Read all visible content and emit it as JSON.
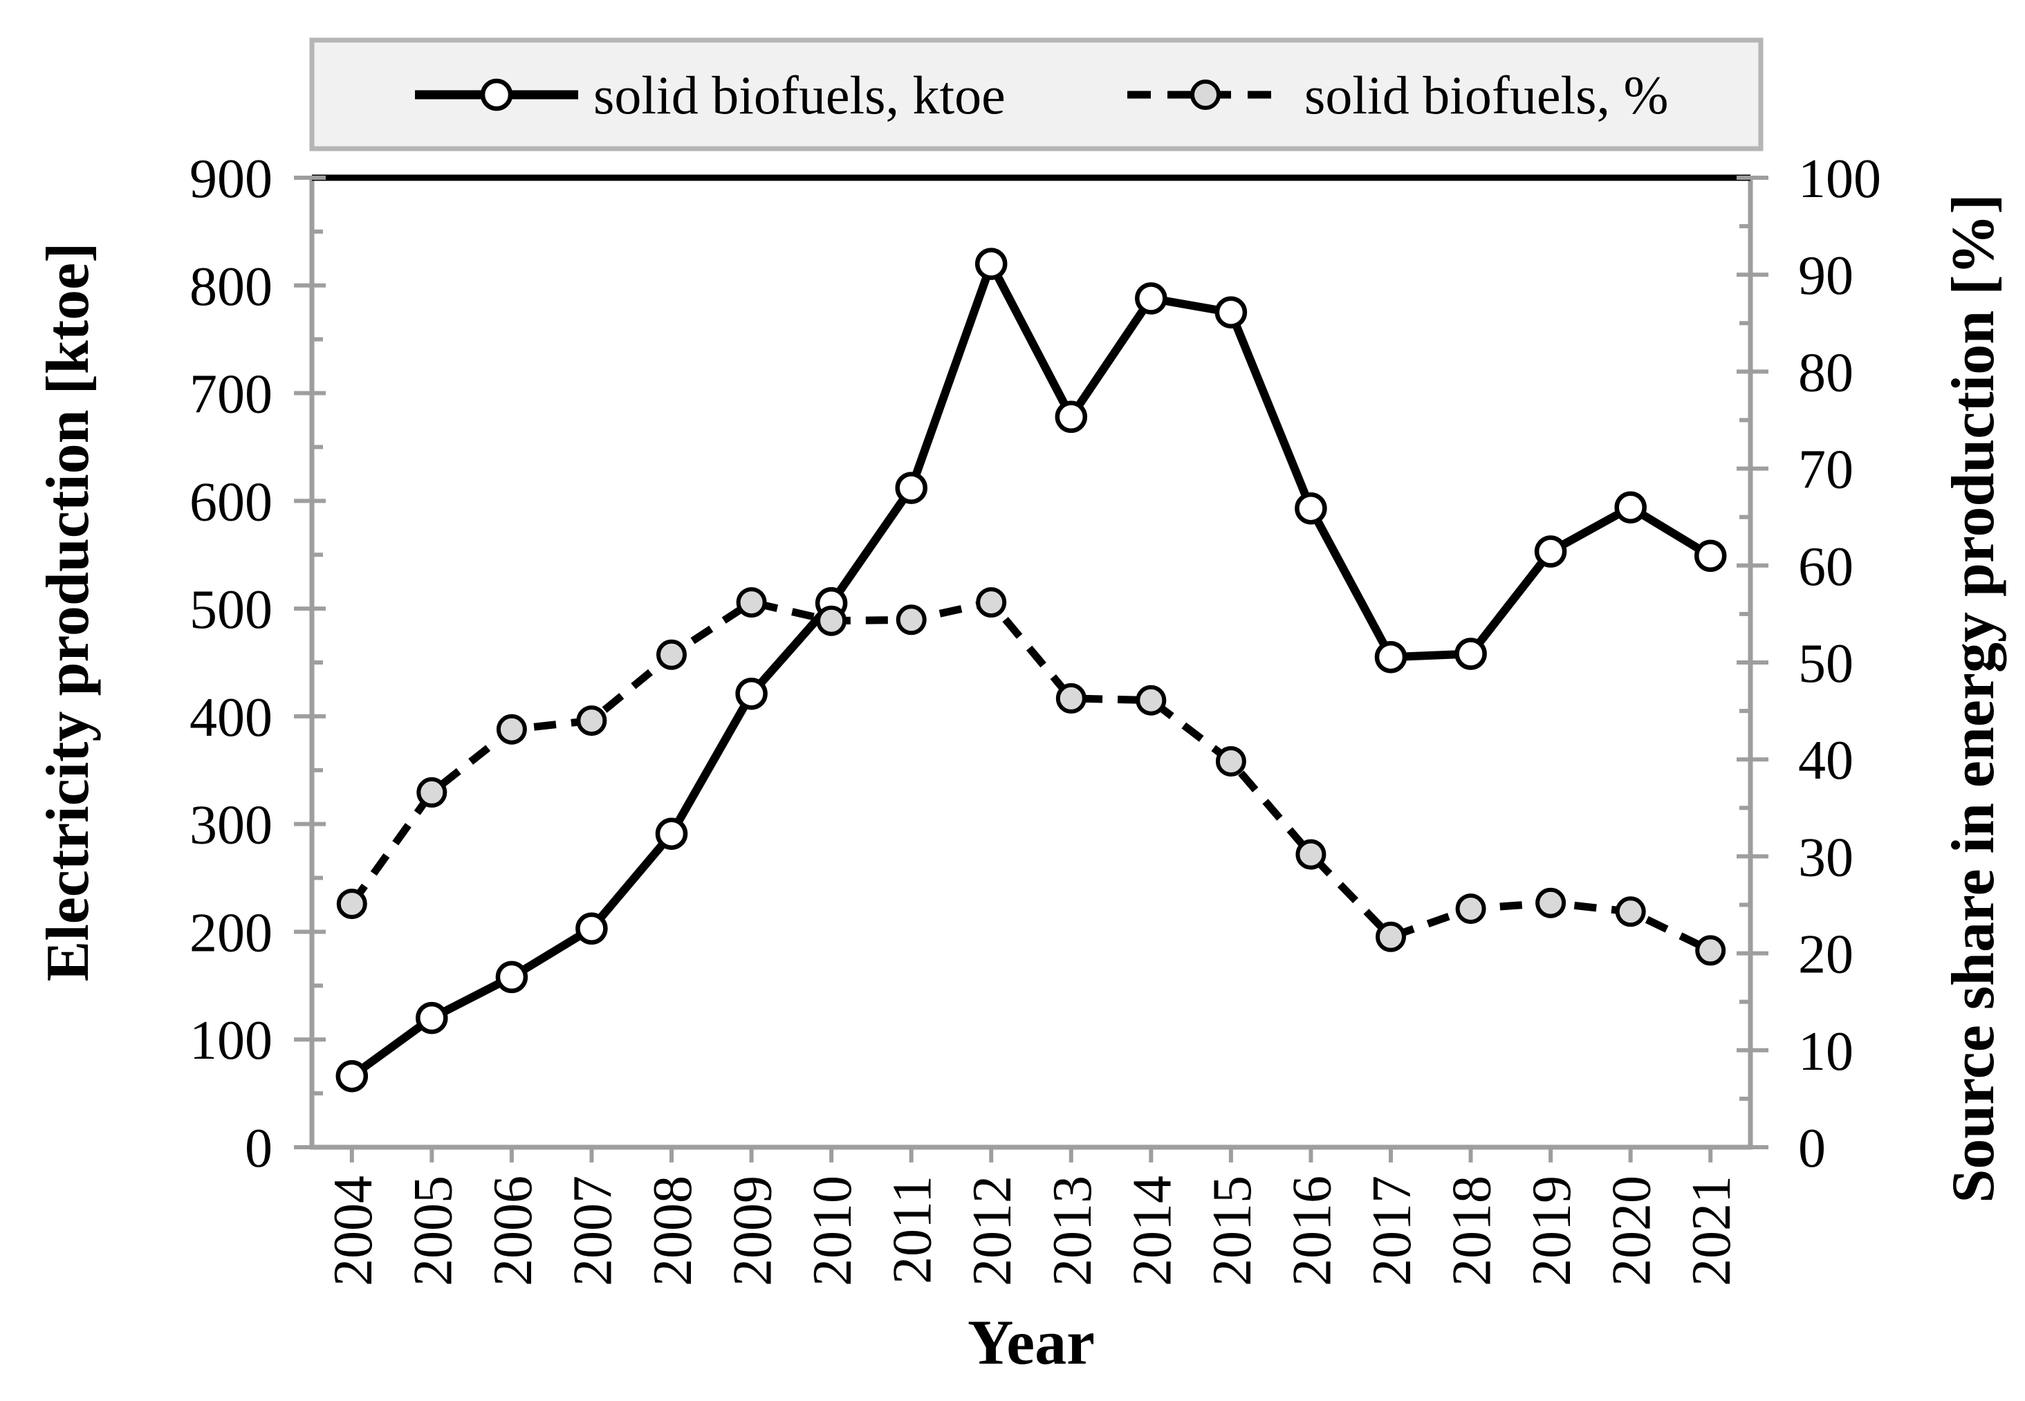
{
  "figure": {
    "background": "#ffffff",
    "axis_color": "#9e9e9e",
    "line_color": "#000000",
    "legend": {
      "fill": "#f1f1f1",
      "border": "#b5b5b5",
      "items": [
        {
          "label": "solid biofuels, ktoe",
          "line_style": "solid",
          "marker": "circle-icon",
          "marker_fill": "#ffffff"
        },
        {
          "label": "solid biofuels, %",
          "line_style": "dashed",
          "marker": "circle-icon",
          "marker_fill": "#d9d9d9"
        }
      ]
    }
  },
  "chart_data": {
    "type": "line",
    "title": "",
    "x": [
      "2004",
      "2005",
      "2006",
      "2007",
      "2008",
      "2009",
      "2010",
      "2011",
      "2012",
      "2013",
      "2014",
      "2015",
      "2016",
      "2017",
      "2018",
      "2019",
      "2020",
      "2021"
    ],
    "xlabel": "Year",
    "grid": false,
    "legend_position": "top",
    "left_axis": {
      "label": "Electricity production  [ktoe]",
      "min": 0,
      "max": 900,
      "major_step": 100,
      "minor_step": 50,
      "tick_labels": [
        "0",
        "100",
        "200",
        "300",
        "400",
        "500",
        "600",
        "700",
        "800",
        "900"
      ]
    },
    "right_axis": {
      "label": "Source share in energy production [%]",
      "min": 0,
      "max": 100,
      "major_step": 10,
      "minor_step": 5,
      "tick_labels": [
        "0",
        "10",
        "20",
        "30",
        "40",
        "50",
        "60",
        "70",
        "80",
        "90",
        "100"
      ]
    },
    "series": [
      {
        "name": "solid biofuels, ktoe",
        "axis": "left",
        "line": "solid",
        "marker_fill": "#ffffff",
        "values": [
          66,
          120,
          158,
          203,
          291,
          421,
          505,
          612,
          820,
          678,
          788,
          775,
          593,
          455,
          458,
          553,
          594,
          549
        ]
      },
      {
        "name": "solid biofuels, %",
        "axis": "right",
        "line": "dashed",
        "marker_fill": "#d9d9d9",
        "values": [
          25.1,
          36.6,
          43.1,
          44.0,
          50.8,
          56.2,
          54.3,
          54.4,
          56.2,
          46.3,
          46.1,
          39.8,
          30.2,
          21.7,
          24.6,
          25.2,
          24.3,
          20.3
        ]
      }
    ]
  }
}
